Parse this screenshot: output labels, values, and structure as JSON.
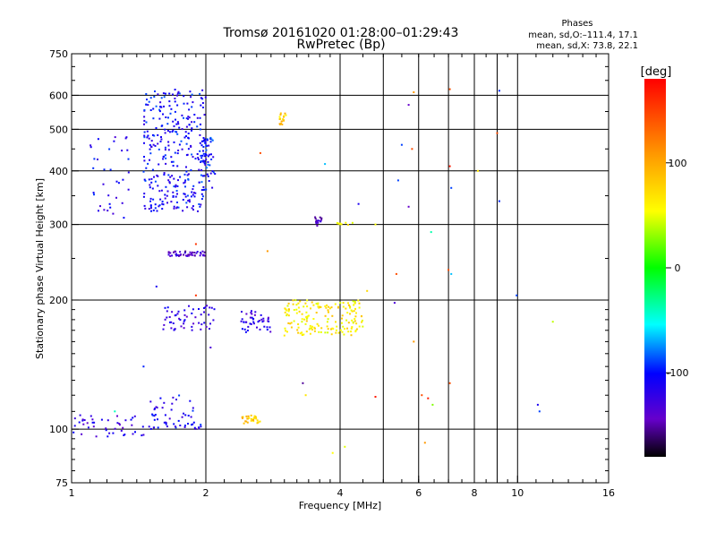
{
  "header": {
    "title": "Tromsø 20161020 01:28:00–01:29:43",
    "subtitle": "RwPretec (Bp)"
  },
  "phases": {
    "heading": "Phases",
    "line_o": "mean, sd,O:–111.4, 17.1",
    "line_x": "mean, sd,X:  73.8, 22.1"
  },
  "chart_data": {
    "type": "scatter",
    "title": "Tromsø 20161020 01:28:00–01:29:43",
    "subtitle": "RwPretec (Bp)",
    "xlabel": "Frequency [MHz]",
    "ylabel": "Stationary phase Virtual Height [km]",
    "x_scale": "log",
    "y_scale": "log",
    "xlim": [
      1,
      16
    ],
    "ylim": [
      75,
      750
    ],
    "x_ticks": [
      1,
      2,
      4,
      6,
      8,
      10,
      16
    ],
    "x_gridlines": [
      2,
      4,
      5,
      6,
      7,
      8,
      9,
      10
    ],
    "y_ticks": [
      75,
      100,
      200,
      300,
      400,
      500,
      600,
      750
    ],
    "y_gridlines": [
      100,
      200,
      300,
      400,
      500,
      600
    ],
    "colorbar": {
      "label": "[deg]",
      "range": [
        -180,
        180
      ],
      "ticks": [
        100,
        0,
        -100
      ]
    },
    "clusters": [
      {
        "x": [
          1.0,
          1.5
        ],
        "y": [
          96,
          108
        ],
        "phase": -120,
        "count": 45
      },
      {
        "x": [
          1.5,
          1.95
        ],
        "y": [
          100,
          120
        ],
        "phase": -110,
        "count": 55
      },
      {
        "x": [
          1.1,
          1.35
        ],
        "y": [
          310,
          480
        ],
        "phase": -110,
        "count": 35
      },
      {
        "x": [
          1.45,
          2.0
        ],
        "y": [
          320,
          620
        ],
        "phase": -105,
        "count": 320
      },
      {
        "x": [
          1.95,
          2.1
        ],
        "y": [
          360,
          480
        ],
        "phase": -100,
        "count": 50
      },
      {
        "x": [
          1.65,
          2.0
        ],
        "y": [
          253,
          260
        ],
        "phase": -135,
        "count": 45
      },
      {
        "x": [
          1.6,
          2.1
        ],
        "y": [
          170,
          195
        ],
        "phase": -120,
        "count": 55
      },
      {
        "x": [
          2.4,
          2.8
        ],
        "y": [
          168,
          190
        ],
        "phase": -120,
        "count": 45
      },
      {
        "x": [
          3.0,
          4.5
        ],
        "y": [
          165,
          200
        ],
        "phase": 85,
        "count": 170
      },
      {
        "x": [
          2.4,
          2.65
        ],
        "y": [
          103,
          108
        ],
        "phase": 95,
        "count": 30
      },
      {
        "x": [
          2.9,
          3.05
        ],
        "y": [
          510,
          550
        ],
        "phase": 100,
        "count": 18
      },
      {
        "x": [
          3.5,
          3.65
        ],
        "y": [
          298,
          312
        ],
        "phase": -140,
        "count": 16
      },
      {
        "x": [
          3.9,
          4.3
        ],
        "y": [
          299,
          303
        ],
        "phase": 80,
        "count": 10
      }
    ],
    "points": [
      [
        1.25,
        110,
        -45
      ],
      [
        1.45,
        140,
        -95
      ],
      [
        1.55,
        215,
        -110
      ],
      [
        1.9,
        205,
        160
      ],
      [
        1.9,
        270,
        160
      ],
      [
        2.05,
        155,
        -130
      ],
      [
        2.65,
        440,
        150
      ],
      [
        2.75,
        260,
        120
      ],
      [
        3.3,
        128,
        -150
      ],
      [
        3.35,
        120,
        90
      ],
      [
        3.7,
        415,
        -70
      ],
      [
        3.85,
        88,
        80
      ],
      [
        4.1,
        91,
        70
      ],
      [
        4.4,
        335,
        -110
      ],
      [
        4.6,
        210,
        95
      ],
      [
        4.8,
        300,
        80
      ],
      [
        4.8,
        119,
        170
      ],
      [
        5.3,
        197,
        -130
      ],
      [
        5.35,
        230,
        150
      ],
      [
        5.4,
        380,
        -90
      ],
      [
        5.5,
        460,
        -90
      ],
      [
        5.7,
        570,
        -140
      ],
      [
        5.7,
        330,
        -140
      ],
      [
        5.8,
        450,
        150
      ],
      [
        5.85,
        160,
        120
      ],
      [
        5.85,
        610,
        120
      ],
      [
        6.1,
        120,
        150
      ],
      [
        6.2,
        93,
        120
      ],
      [
        6.3,
        118,
        170
      ],
      [
        6.4,
        288,
        -40
      ],
      [
        6.45,
        114,
        40
      ],
      [
        7.0,
        235,
        150
      ],
      [
        7.05,
        620,
        150
      ],
      [
        7.05,
        410,
        170
      ],
      [
        7.05,
        128,
        150
      ],
      [
        7.1,
        230,
        -70
      ],
      [
        7.1,
        365,
        -90
      ],
      [
        8.15,
        400,
        90
      ],
      [
        9.0,
        490,
        150
      ],
      [
        9.1,
        615,
        -95
      ],
      [
        9.1,
        340,
        -95
      ],
      [
        9.95,
        205,
        -90
      ],
      [
        11.1,
        114,
        -110
      ],
      [
        11.2,
        110,
        -90
      ],
      [
        12.0,
        178,
        60
      ]
    ]
  }
}
